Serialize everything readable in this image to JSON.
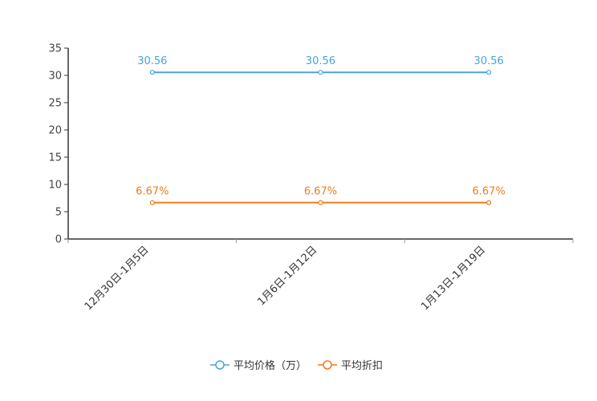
{
  "chart_data": {
    "type": "line",
    "categories": [
      "12月30日-1月5日",
      "1月6日-1月12日",
      "1月13日-1月19日"
    ],
    "ylim": [
      0,
      35
    ],
    "yticks": [
      0,
      5,
      10,
      15,
      20,
      25,
      30,
      35
    ],
    "series": [
      {
        "name": "平均价格（万）",
        "values": [
          30.56,
          30.56,
          30.56
        ],
        "labels": [
          "30.56",
          "30.56",
          "30.56"
        ],
        "color": "#4aa3d6"
      },
      {
        "name": "平均折扣",
        "values": [
          6.67,
          6.67,
          6.67
        ],
        "labels": [
          "6.67%",
          "6.67%",
          "6.67%"
        ],
        "color": "#f07c1a"
      }
    ],
    "legend_position": "bottom-center"
  }
}
